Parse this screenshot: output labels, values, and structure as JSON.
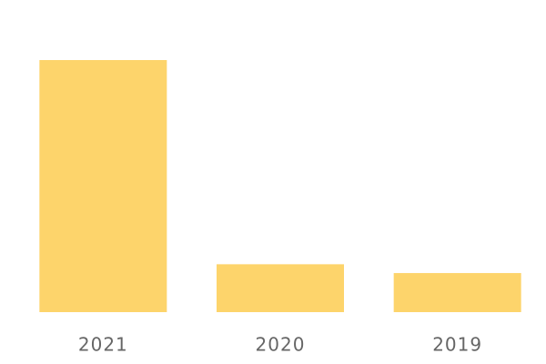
{
  "chart_data": {
    "type": "bar",
    "categories": [
      "2021",
      "2020",
      "2019"
    ],
    "values": [
      100,
      19,
      15.5
    ],
    "color": "#fdd46b"
  }
}
